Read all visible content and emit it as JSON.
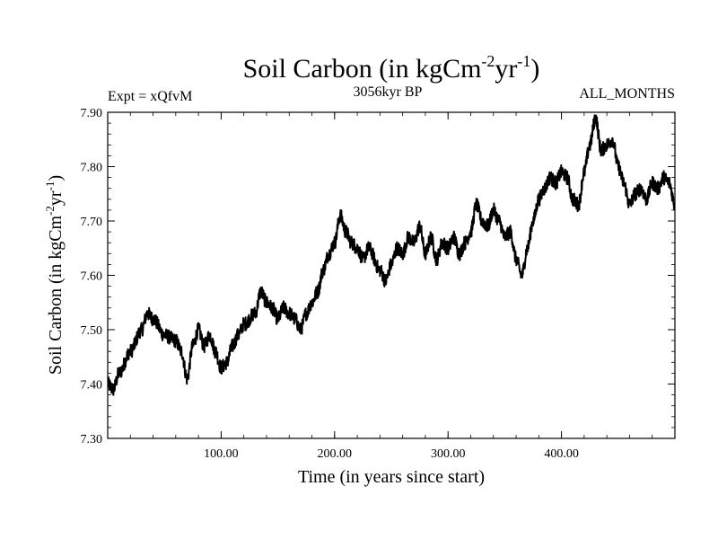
{
  "chart_data": {
    "type": "line",
    "title": "Soil Carbon (in kgCm",
    "title_sup1": "-2",
    "title_mid": "yr",
    "title_sup2": "-1",
    "title_end": ")",
    "subtitle_left": "Expt = xQfvM",
    "subtitle_center": "3056kyr BP",
    "subtitle_right": "ALL_MONTHS",
    "xlabel": "Time (in years since start)",
    "ylabel": "Soil Carbon (in kgCm",
    "ylabel_sup1": "-2",
    "ylabel_mid": "yr",
    "ylabel_sup2": "-1",
    "ylabel_end": ")",
    "xlim": [
      0,
      500
    ],
    "ylim": [
      7.3,
      7.9
    ],
    "x_ticks": [
      100,
      200,
      300,
      400
    ],
    "x_tick_labels": [
      "100.00",
      "200.00",
      "300.00",
      "400.00"
    ],
    "y_ticks": [
      7.3,
      7.4,
      7.5,
      7.6,
      7.7,
      7.8,
      7.9
    ],
    "y_tick_labels": [
      "7.30",
      "7.40",
      "7.50",
      "7.60",
      "7.70",
      "7.80",
      "7.90"
    ],
    "series": [
      {
        "name": "Soil Carbon",
        "color": "#000000",
        "x": [
          0,
          5,
          10,
          20,
          30,
          35,
          40,
          50,
          60,
          65,
          70,
          75,
          80,
          85,
          90,
          95,
          100,
          105,
          110,
          115,
          120,
          130,
          135,
          140,
          145,
          150,
          155,
          160,
          165,
          170,
          175,
          180,
          185,
          190,
          195,
          200,
          205,
          210,
          215,
          220,
          225,
          230,
          240,
          245,
          250,
          255,
          260,
          265,
          270,
          275,
          280,
          285,
          290,
          295,
          300,
          305,
          310,
          315,
          320,
          325,
          330,
          335,
          340,
          345,
          350,
          355,
          360,
          365,
          370,
          375,
          380,
          385,
          390,
          395,
          400,
          405,
          410,
          415,
          420,
          425,
          430,
          435,
          440,
          445,
          450,
          455,
          460,
          465,
          470,
          475,
          480,
          485,
          490,
          495,
          500
        ],
        "y": [
          7.4,
          7.39,
          7.42,
          7.46,
          7.5,
          7.53,
          7.52,
          7.49,
          7.48,
          7.46,
          7.41,
          7.47,
          7.5,
          7.47,
          7.49,
          7.46,
          7.43,
          7.44,
          7.47,
          7.49,
          7.51,
          7.53,
          7.57,
          7.55,
          7.54,
          7.52,
          7.54,
          7.53,
          7.52,
          7.5,
          7.53,
          7.55,
          7.57,
          7.61,
          7.64,
          7.66,
          7.71,
          7.68,
          7.66,
          7.65,
          7.63,
          7.65,
          7.61,
          7.59,
          7.62,
          7.65,
          7.64,
          7.67,
          7.66,
          7.69,
          7.64,
          7.67,
          7.63,
          7.66,
          7.65,
          7.67,
          7.64,
          7.66,
          7.68,
          7.73,
          7.7,
          7.69,
          7.72,
          7.7,
          7.67,
          7.68,
          7.63,
          7.6,
          7.65,
          7.7,
          7.74,
          7.76,
          7.78,
          7.77,
          7.79,
          7.78,
          7.74,
          7.73,
          7.79,
          7.84,
          7.89,
          7.83,
          7.84,
          7.85,
          7.8,
          7.77,
          7.73,
          7.75,
          7.76,
          7.74,
          7.77,
          7.76,
          7.78,
          7.77,
          7.73
        ]
      }
    ]
  }
}
